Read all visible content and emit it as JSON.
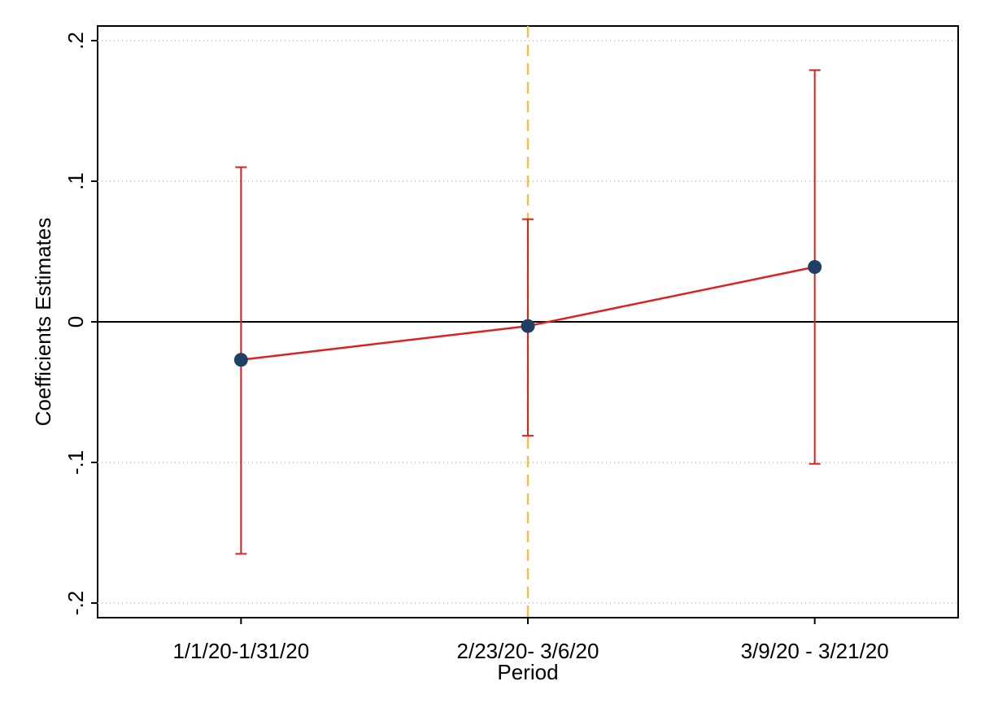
{
  "chart_data": {
    "type": "line",
    "ylabel": "Coefficients Estimates",
    "xlabel": "Period",
    "categories": [
      "1/1/20-1/31/20",
      "2/23/20- 3/6/20",
      "3/9/20 - 3/21/20"
    ],
    "series": [
      {
        "color": "#dd2020",
        "marker_color": "#1f3f66",
        "values": [
          -0.027,
          -0.003,
          0.039
        ],
        "ci_lower": [
          -0.165,
          -0.081,
          -0.101
        ],
        "ci_upper": [
          0.11,
          0.073,
          0.179
        ]
      }
    ],
    "ylim": [
      -0.2104,
      0.2104
    ],
    "yticks": [
      {
        "value": -0.2,
        "label": "-.2"
      },
      {
        "value": -0.1,
        "label": "-.1"
      },
      {
        "value": 0,
        "label": "0"
      },
      {
        "value": 0.1,
        "label": ".1"
      },
      {
        "value": 0.2,
        "label": ".2"
      }
    ],
    "grid": true,
    "yline": 0,
    "xline": 1,
    "xline_color": "#f0c050"
  }
}
